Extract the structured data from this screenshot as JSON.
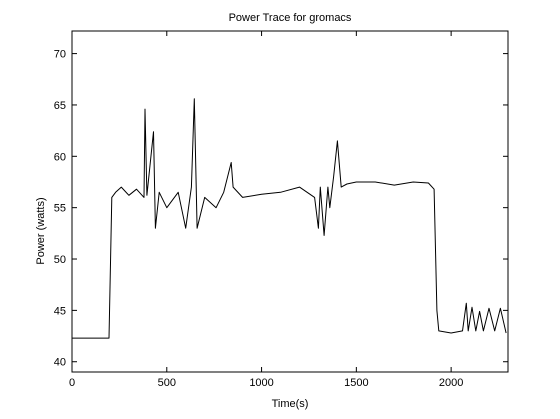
{
  "chart_data": {
    "type": "line",
    "title": "Power Trace for gromacs",
    "xlabel": "Time(s)",
    "ylabel": "Power (watts)",
    "xlim": [
      0,
      2300
    ],
    "ylim": [
      39,
      72.2
    ],
    "xticks": [
      0,
      500,
      1000,
      1500,
      2000
    ],
    "yticks": [
      40,
      45,
      50,
      55,
      60,
      65,
      70
    ],
    "grid": false,
    "series": [
      {
        "name": "Power",
        "color": "#000000",
        "x": [
          0,
          195,
          210,
          230,
          260,
          300,
          340,
          380,
          385,
          395,
          430,
          440,
          460,
          500,
          560,
          600,
          630,
          645,
          660,
          700,
          760,
          800,
          840,
          850,
          900,
          1000,
          1100,
          1200,
          1280,
          1300,
          1310,
          1330,
          1350,
          1360,
          1380,
          1400,
          1420,
          1450,
          1500,
          1600,
          1700,
          1800,
          1880,
          1910,
          1925,
          1935,
          2000,
          2060,
          2080,
          2090,
          2110,
          2130,
          2150,
          2170,
          2200,
          2230,
          2260,
          2290
        ],
        "values": [
          42.3,
          42.3,
          56,
          56.5,
          57,
          56.2,
          56.8,
          56,
          64.6,
          56.2,
          62.4,
          53,
          56.5,
          55,
          56.5,
          53,
          57,
          65.6,
          53,
          56,
          55,
          56.5,
          59.4,
          57,
          56,
          56.3,
          56.5,
          57,
          56,
          53,
          57,
          52.3,
          57,
          55,
          58,
          61.5,
          57,
          57.3,
          57.5,
          57.5,
          57.2,
          57.5,
          57.4,
          56.8,
          45,
          43,
          42.8,
          43,
          45.7,
          43,
          45.3,
          43,
          44.9,
          43,
          45.2,
          43,
          45.2,
          42.8
        ]
      }
    ]
  }
}
